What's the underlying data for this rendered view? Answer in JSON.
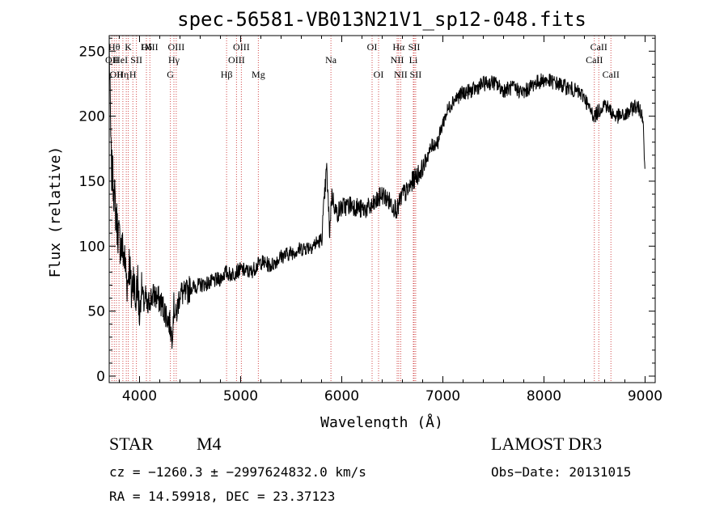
{
  "chart_data": {
    "type": "line",
    "title": "spec-56581-VB013N21V1_sp12-048.fits",
    "xlabel": "Wavelength (Å)",
    "ylabel": "Flux (relative)",
    "xlim": [
      3700,
      9100
    ],
    "ylim": [
      -5,
      262
    ],
    "xticks": [
      4000,
      5000,
      6000,
      7000,
      8000,
      9000
    ],
    "yticks": [
      0,
      50,
      100,
      150,
      200,
      250
    ],
    "series": [
      {
        "name": "flux",
        "x": [
          3700,
          3720,
          3740,
          3760,
          3780,
          3800,
          3820,
          3840,
          3860,
          3880,
          3900,
          3920,
          3940,
          3960,
          3980,
          4000,
          4020,
          4040,
          4060,
          4080,
          4100,
          4150,
          4200,
          4250,
          4300,
          4320,
          4340,
          4360,
          4400,
          4450,
          4500,
          4600,
          4700,
          4800,
          4850,
          4900,
          4950,
          5000,
          5100,
          5200,
          5300,
          5400,
          5500,
          5600,
          5700,
          5800,
          5850,
          5880,
          5900,
          5950,
          6000,
          6100,
          6200,
          6300,
          6400,
          6500,
          6550,
          6600,
          6650,
          6700,
          6750,
          6800,
          6850,
          6900,
          6950,
          7000,
          7050,
          7100,
          7200,
          7300,
          7400,
          7500,
          7600,
          7700,
          7800,
          7900,
          8000,
          8100,
          8200,
          8300,
          8400,
          8450,
          8500,
          8550,
          8600,
          8650,
          8700,
          8800,
          8900,
          8950,
          8980,
          9000
        ],
        "values": [
          255,
          160,
          150,
          130,
          115,
          105,
          100,
          95,
          85,
          70,
          90,
          60,
          80,
          55,
          75,
          45,
          70,
          55,
          60,
          50,
          60,
          62,
          58,
          50,
          40,
          30,
          55,
          45,
          65,
          62,
          68,
          70,
          72,
          75,
          80,
          78,
          80,
          82,
          80,
          88,
          85,
          92,
          95,
          98,
          100,
          105,
          160,
          110,
          140,
          125,
          130,
          132,
          128,
          130,
          140,
          132,
          128,
          140,
          142,
          150,
          155,
          160,
          170,
          178,
          180,
          195,
          205,
          212,
          218,
          220,
          225,
          226,
          220,
          222,
          218,
          225,
          228,
          226,
          223,
          220,
          215,
          205,
          200,
          205,
          210,
          205,
          200,
          200,
          208,
          205,
          200,
          150
        ]
      }
    ],
    "lines": [
      {
        "wl": 3727,
        "label": "OII",
        "row": 2
      },
      {
        "wl": 3750,
        "label": "Hθ",
        "row": 1
      },
      {
        "wl": 3771,
        "label": "OII",
        "row": 3
      },
      {
        "wl": 3797,
        "label": "He",
        "row": 2
      },
      {
        "wl": 3835,
        "label": "Hη",
        "row": 3
      },
      {
        "wl": 3869,
        "label": "I",
        "row": 2
      },
      {
        "wl": 3889,
        "label": "K",
        "row": 1
      },
      {
        "wl": 3934,
        "label": "H",
        "row": 3
      },
      {
        "wl": 3969,
        "label": "SII",
        "row": 2
      },
      {
        "wl": 4068,
        "label": "Hδ",
        "row": 1
      },
      {
        "wl": 4102,
        "label": "OIII",
        "row": 1
      },
      {
        "wl": 4305,
        "label": "G",
        "row": 3
      },
      {
        "wl": 4340,
        "label": "Hγ",
        "row": 2
      },
      {
        "wl": 4363,
        "label": "OIII",
        "row": 1
      },
      {
        "wl": 4861,
        "label": "Hβ",
        "row": 3
      },
      {
        "wl": 4959,
        "label": "OIII",
        "row": 2
      },
      {
        "wl": 5007,
        "label": "OIII",
        "row": 1
      },
      {
        "wl": 5175,
        "label": "Mg",
        "row": 3
      },
      {
        "wl": 5893,
        "label": "Na",
        "row": 2
      },
      {
        "wl": 6300,
        "label": "OI",
        "row": 1
      },
      {
        "wl": 6364,
        "label": "OI",
        "row": 3
      },
      {
        "wl": 6548,
        "label": "NII",
        "row": 2
      },
      {
        "wl": 6563,
        "label": "Hα",
        "row": 1
      },
      {
        "wl": 6583,
        "label": "NII",
        "row": 3
      },
      {
        "wl": 6708,
        "label": "Li",
        "row": 2
      },
      {
        "wl": 6716,
        "label": "SII",
        "row": 1
      },
      {
        "wl": 6731,
        "label": "SII",
        "row": 3
      },
      {
        "wl": 8498,
        "label": "CaII",
        "row": 2
      },
      {
        "wl": 8542,
        "label": "CaII",
        "row": 1
      },
      {
        "wl": 8662,
        "label": "CaII",
        "row": 3
      }
    ]
  },
  "info": {
    "class": "STAR",
    "subclass": "M4",
    "survey": "LAMOST DR3",
    "cz": "cz = −1260.3 ± −2997624832.0 km/s",
    "obs_date": "Obs−Date: 20131015",
    "radec": "RA =  14.59918, DEC =  23.37123"
  },
  "colors": {
    "line": "#000000",
    "marker": "#d24a4a",
    "text": "#000000"
  }
}
